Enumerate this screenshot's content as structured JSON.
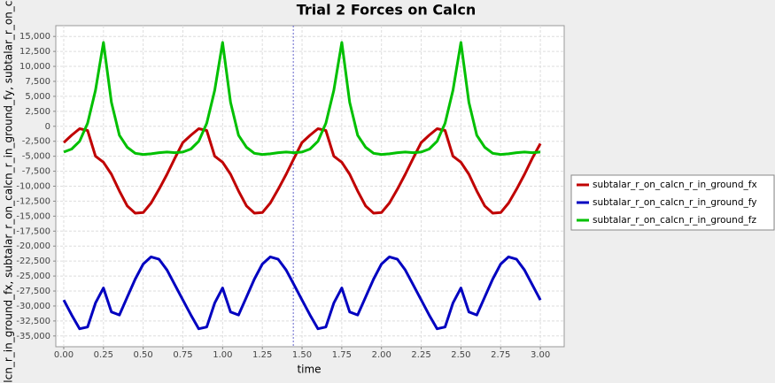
{
  "chart_data": {
    "type": "line",
    "title": "Trial 2 Forces on Calcn",
    "x_label": "time",
    "y_label": "calcn_r_in_ground_fx, subtalar_r_on_calcn_r_in_ground_fy, subtalar_r_on_calc",
    "x": [
      0,
      0.05,
      0.1,
      0.15,
      0.2,
      0.25,
      0.3,
      0.35,
      0.4,
      0.45,
      0.5,
      0.55,
      0.6,
      0.65,
      0.7,
      0.75,
      0.8,
      0.85,
      0.9,
      0.95,
      1,
      1.05,
      1.1,
      1.15,
      1.2,
      1.25,
      1.3,
      1.35,
      1.4,
      1.45,
      1.5,
      1.55,
      1.6,
      1.65,
      1.7,
      1.75,
      1.8,
      1.85,
      1.9,
      1.95,
      2,
      2.05,
      2.1,
      2.15,
      2.2,
      2.25,
      2.3,
      2.35,
      2.4,
      2.45,
      2.5,
      2.55,
      2.6,
      2.65,
      2.7,
      2.75,
      2.8,
      2.85,
      2.9,
      2.95,
      3
    ],
    "series": [
      {
        "name": "subtalar_r_on_calcn_r_in_ground_fx",
        "color": "#c00000",
        "values": [
          -2700,
          -1500,
          -400,
          -700,
          -5000,
          -6000,
          -8000,
          -10800,
          -13300,
          -14500,
          -14400,
          -12800,
          -10500,
          -8000,
          -5300,
          -2700,
          -1500,
          -400,
          -700,
          -5000,
          -6000,
          -8000,
          -10800,
          -13300,
          -14500,
          -14400,
          -12800,
          -10500,
          -8000,
          -5300,
          -2700,
          -1500,
          -400,
          -700,
          -5000,
          -6000,
          -8000,
          -10800,
          -13300,
          -14500,
          -14400,
          -12800,
          -10500,
          -8000,
          -5300,
          -2700,
          -1500,
          -400,
          -700,
          -5000,
          -6000,
          -8000,
          -10800,
          -13300,
          -14500,
          -14400,
          -12800,
          -10500,
          -8000,
          -5300,
          -2900
        ]
      },
      {
        "name": "subtalar_r_on_calcn_r_in_ground_fy",
        "color": "#0000c0",
        "values": [
          -29000,
          -31500,
          -33800,
          -33500,
          -29500,
          -27000,
          -31000,
          -31500,
          -28500,
          -25500,
          -23000,
          -21800,
          -22200,
          -24000,
          -26500,
          -29000,
          -31500,
          -33800,
          -33500,
          -29500,
          -27000,
          -31000,
          -31500,
          -28500,
          -25500,
          -23000,
          -21800,
          -22200,
          -24000,
          -26500,
          -29000,
          -31500,
          -33800,
          -33500,
          -29500,
          -27000,
          -31000,
          -31500,
          -28500,
          -25500,
          -23000,
          -21800,
          -22200,
          -24000,
          -26500,
          -29000,
          -31500,
          -33800,
          -33500,
          -29500,
          -27000,
          -31000,
          -31500,
          -28500,
          -25500,
          -23000,
          -21800,
          -22200,
          -24000,
          -26500,
          -29000
        ]
      },
      {
        "name": "subtalar_r_on_calcn_r_in_ground_fz",
        "color": "#00c000",
        "values": [
          -4300,
          -3800,
          -2500,
          500,
          6000,
          14000,
          4000,
          -1500,
          -3500,
          -4500,
          -4700,
          -4600,
          -4400,
          -4300,
          -4400,
          -4300,
          -3800,
          -2500,
          500,
          6000,
          14000,
          4000,
          -1500,
          -3500,
          -4500,
          -4700,
          -4600,
          -4400,
          -4300,
          -4400,
          -4300,
          -3800,
          -2500,
          500,
          6000,
          14000,
          4000,
          -1500,
          -3500,
          -4500,
          -4700,
          -4600,
          -4400,
          -4300,
          -4400,
          -4300,
          -3800,
          -2500,
          500,
          6000,
          14000,
          4000,
          -1500,
          -3500,
          -4500,
          -4700,
          -4600,
          -4400,
          -4300,
          -4400,
          -4300
        ]
      }
    ],
    "xlim": [
      -0.05,
      3.15
    ],
    "ylim": [
      -36800,
      16800
    ],
    "xticks": [
      {
        "value": 0,
        "label": "0.00"
      },
      0.25,
      {
        "value": 0.5,
        "label": "0.50"
      },
      0.75,
      {
        "value": 1,
        "label": "1.00"
      },
      1.25,
      {
        "value": 1.5,
        "label": "1.50"
      },
      1.75,
      {
        "value": 2,
        "label": "2.00"
      },
      2.25,
      {
        "value": 2.5,
        "label": "2.50"
      },
      2.75,
      {
        "value": 3,
        "label": "3.00"
      }
    ],
    "yticks": [
      {
        "value": 15000,
        "label": "15,000"
      },
      {
        "value": 12500,
        "label": "12,500"
      },
      {
        "value": 10000,
        "label": "10,000"
      },
      {
        "value": 7500,
        "label": "7,500"
      },
      {
        "value": 5000,
        "label": "5,000"
      },
      {
        "value": 2500,
        "label": "2,500"
      },
      0,
      {
        "value": -2500,
        "label": "-2,500"
      },
      {
        "value": -5000,
        "label": "-5,000"
      },
      {
        "value": -7500,
        "label": "-7,500"
      },
      {
        "value": -10000,
        "label": "-10,000"
      },
      {
        "value": -12500,
        "label": "-12,500"
      },
      {
        "value": -15000,
        "label": "-15,000"
      },
      {
        "value": -17500,
        "label": "-17,500"
      },
      {
        "value": -20000,
        "label": "-20,000"
      },
      {
        "value": -22500,
        "label": "-22,500"
      },
      {
        "value": -25000,
        "label": "-25,000"
      },
      {
        "value": -27500,
        "label": "-27,500"
      },
      {
        "value": -30000,
        "label": "-30,000"
      },
      {
        "value": -32500,
        "label": "-32,500"
      },
      {
        "value": -35000,
        "label": "-35,000"
      }
    ],
    "crosshair_x": 1.445,
    "grid": true,
    "legend": "right"
  }
}
